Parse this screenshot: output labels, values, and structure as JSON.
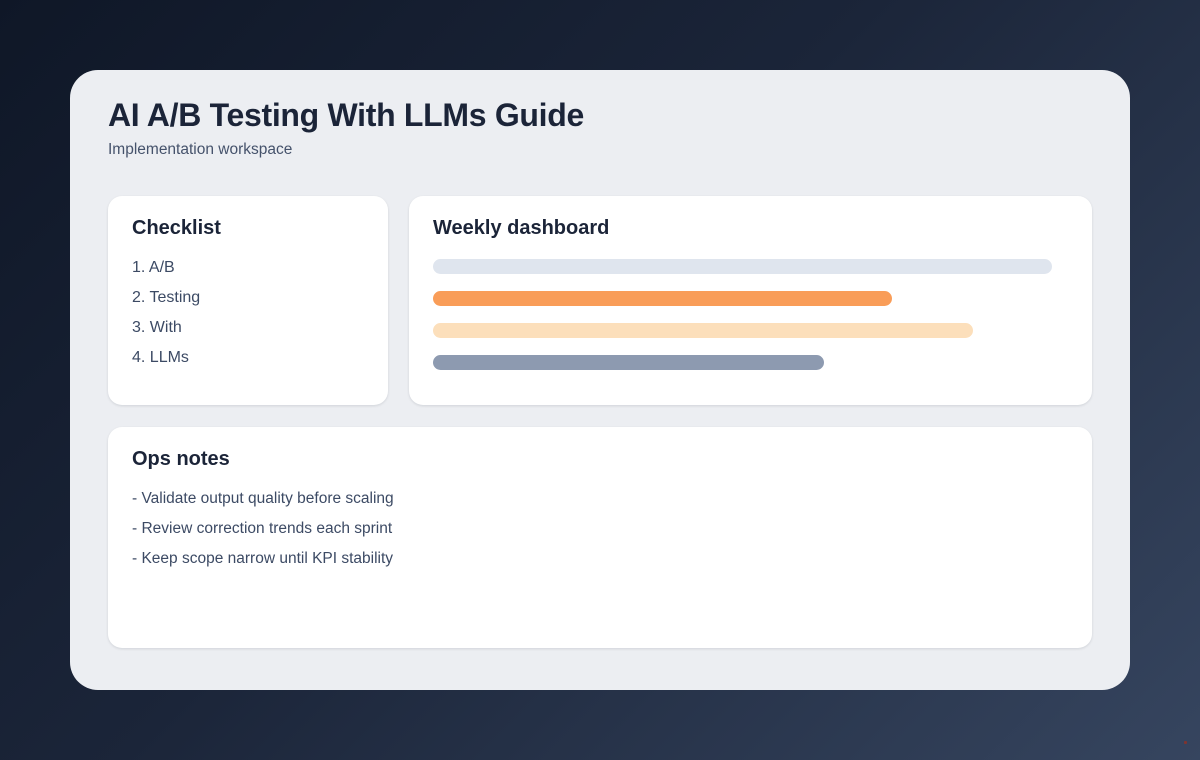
{
  "page": {
    "title": "AI A/B Testing With LLMs Guide",
    "subtitle": "Implementation workspace"
  },
  "checklist": {
    "title": "Checklist",
    "items": [
      "1. A/B",
      "2. Testing",
      "3. With",
      "4. LLMs"
    ]
  },
  "dashboard": {
    "title": "Weekly dashboard",
    "bars": [
      {
        "name": "metric-bar-1",
        "color": "#dfe5ee",
        "width_pct": 97.5
      },
      {
        "name": "metric-bar-2",
        "color": "#f99d58",
        "width_pct": 72.3
      },
      {
        "name": "metric-bar-3",
        "color": "#fcdfbb",
        "width_pct": 85.0
      },
      {
        "name": "metric-bar-4",
        "color": "#8d9ab0",
        "width_pct": 61.5
      }
    ]
  },
  "ops": {
    "title": "Ops notes",
    "items": [
      "- Validate output quality before scaling",
      "- Review correction trends each sprint",
      "- Keep scope narrow until KPI stability"
    ]
  },
  "colors": {
    "background_gradient_start": "#0f1727",
    "background_gradient_end": "#36455f",
    "panel_background": "#eceef2",
    "card_background": "#ffffff",
    "heading_text": "#1b2438",
    "body_text": "#3c4a64"
  }
}
